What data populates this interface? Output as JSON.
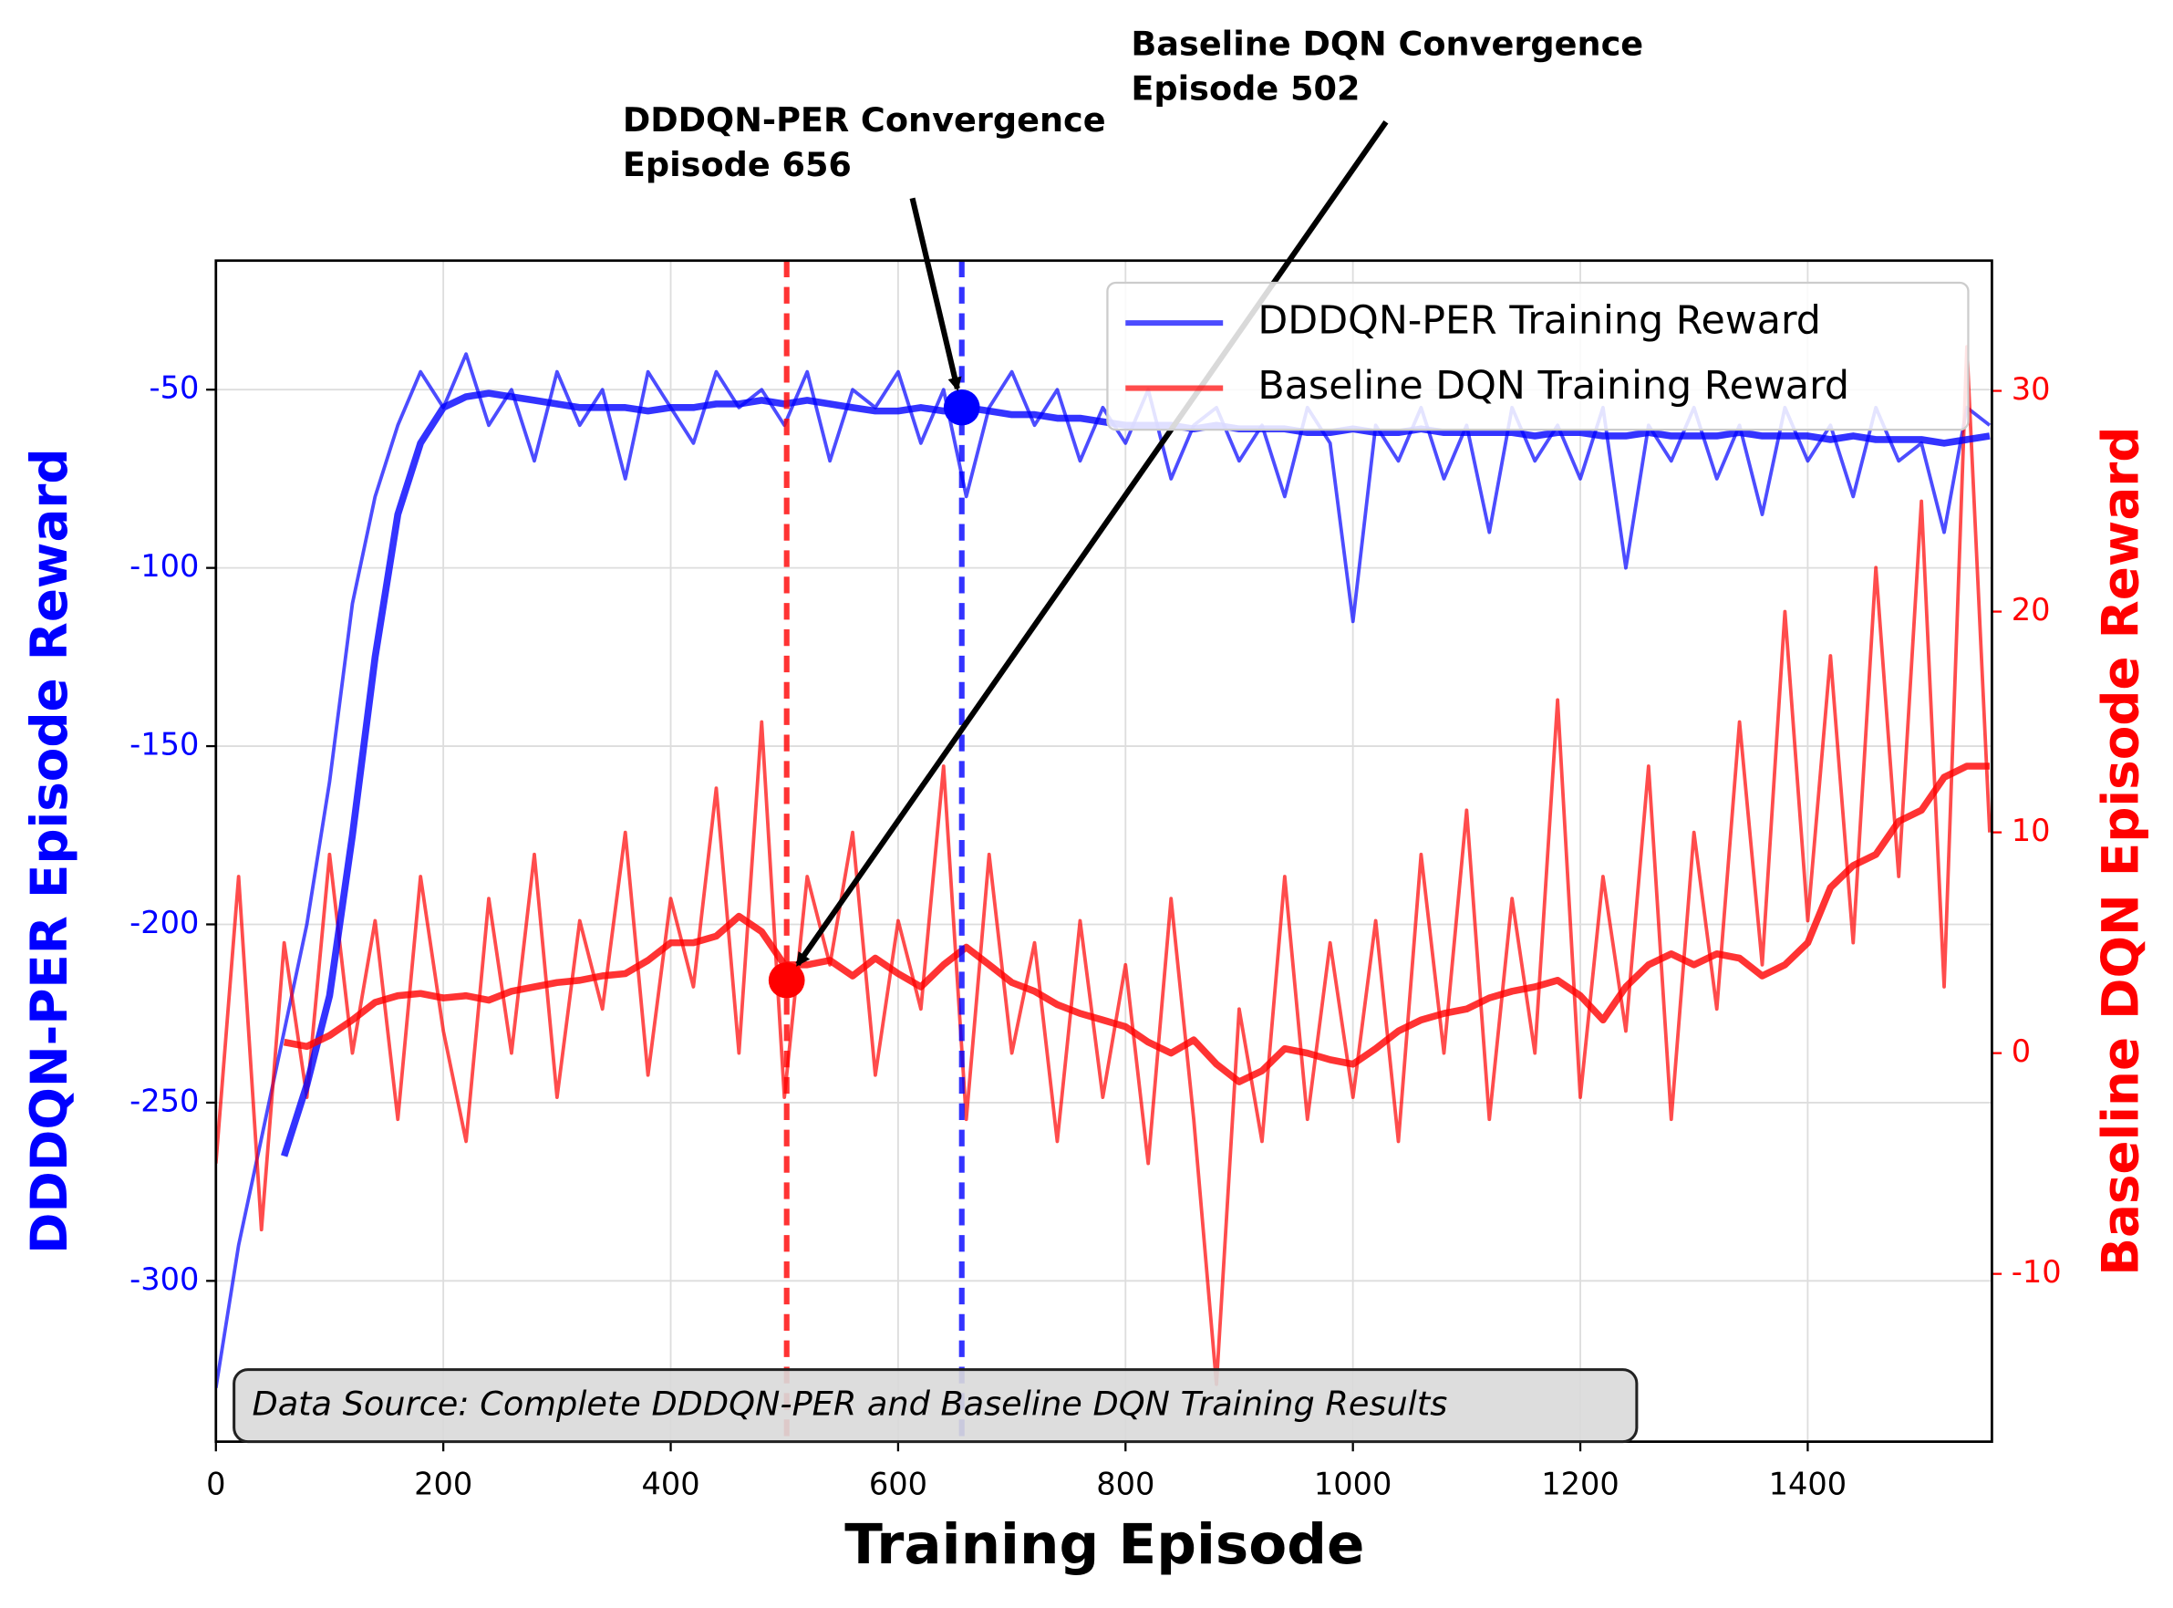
{
  "chart_data": {
    "type": "line",
    "title_x": "Training Episode",
    "ylabel": "DDDQN-PER Episode Reward",
    "y2label": "Baseline DQN Episode Reward",
    "x": [
      0,
      20,
      40,
      60,
      80,
      100,
      120,
      140,
      160,
      180,
      200,
      220,
      240,
      260,
      280,
      300,
      320,
      340,
      360,
      380,
      400,
      420,
      440,
      460,
      480,
      500,
      520,
      540,
      560,
      580,
      600,
      620,
      640,
      660,
      680,
      700,
      720,
      740,
      760,
      780,
      800,
      820,
      840,
      860,
      880,
      900,
      920,
      940,
      960,
      980,
      1000,
      1020,
      1040,
      1060,
      1080,
      1100,
      1120,
      1140,
      1160,
      1180,
      1200,
      1220,
      1240,
      1260,
      1280,
      1300,
      1320,
      1340,
      1360,
      1380,
      1400,
      1420,
      1440,
      1460,
      1480,
      1500,
      1520,
      1540,
      1560
    ],
    "series": [
      {
        "name": "DDDQN-PER Training Reward",
        "color": "#0000ff",
        "axis": "y",
        "opacity": 0.7,
        "width": 2.5,
        "values": [
          -330,
          -290,
          -260,
          -230,
          -200,
          -160,
          -110,
          -80,
          -60,
          -45,
          -55,
          -40,
          -60,
          -50,
          -70,
          -45,
          -60,
          -50,
          -75,
          -45,
          -55,
          -65,
          -45,
          -55,
          -50,
          -60,
          -45,
          -70,
          -50,
          -55,
          -45,
          -65,
          -50,
          -80,
          -55,
          -45,
          -60,
          -50,
          -70,
          -55,
          -65,
          -50,
          -75,
          -60,
          -55,
          -70,
          -60,
          -80,
          -55,
          -65,
          -115,
          -60,
          -70,
          -55,
          -75,
          -60,
          -90,
          -55,
          -70,
          -60,
          -75,
          -55,
          -100,
          -60,
          -70,
          -55,
          -75,
          -60,
          -85,
          -55,
          -70,
          -60,
          -80,
          -55,
          -70,
          -65,
          -90,
          -55,
          -60
        ]
      },
      {
        "name": "Baseline DQN Training Reward",
        "color": "#ff0000",
        "axis": "y2",
        "opacity": 0.7,
        "width": 2.5,
        "values": [
          -5,
          8,
          -8,
          5,
          -2,
          9,
          0,
          6,
          -3,
          8,
          1,
          -4,
          7,
          0,
          9,
          -2,
          6,
          2,
          10,
          -1,
          7,
          3,
          12,
          0,
          15,
          -2,
          8,
          4,
          10,
          -1,
          6,
          2,
          13,
          -3,
          9,
          0,
          5,
          -4,
          6,
          -2,
          4,
          -5,
          7,
          -3,
          -15,
          2,
          -4,
          8,
          -3,
          5,
          -2,
          6,
          -4,
          9,
          0,
          11,
          -3,
          7,
          0,
          16,
          -2,
          8,
          1,
          13,
          -3,
          10,
          2,
          15,
          4,
          20,
          6,
          18,
          5,
          22,
          8,
          25,
          3,
          32,
          10
        ]
      },
      {
        "color": "#0000ff",
        "axis": "y",
        "opacity": 0.8,
        "width": 5,
        "values": [
          null,
          null,
          null,
          -265,
          -245,
          -220,
          -175,
          -125,
          -85,
          -65,
          -55,
          -52,
          -51,
          -52,
          -53,
          -54,
          -55,
          -55,
          -55,
          -56,
          -55,
          -55,
          -54,
          -54,
          -53,
          -54,
          -53,
          -54,
          -55,
          -56,
          -56,
          -55,
          -56,
          -55,
          -56,
          -57,
          -57,
          -58,
          -58,
          -59,
          -60,
          -60,
          -60,
          -61,
          -60,
          -61,
          -61,
          -61,
          -62,
          -62,
          -61,
          -62,
          -62,
          -61,
          -62,
          -62,
          -62,
          -62,
          -63,
          -62,
          -62,
          -63,
          -63,
          -62,
          -63,
          -63,
          -63,
          -62,
          -63,
          -63,
          -63,
          -64,
          -63,
          -64,
          -64,
          -64,
          -65,
          -64,
          -63
        ]
      },
      {
        "color": "#ff0000",
        "axis": "y2",
        "opacity": 0.8,
        "width": 5,
        "values": [
          null,
          null,
          null,
          0.5,
          0.3,
          0.8,
          1.5,
          2.3,
          2.6,
          2.7,
          2.5,
          2.6,
          2.4,
          2.8,
          3,
          3.2,
          3.3,
          3.5,
          3.6,
          4.2,
          5,
          5,
          5.3,
          6.2,
          5.5,
          4,
          4,
          4.2,
          3.5,
          4.3,
          3.6,
          3,
          4,
          4.8,
          4,
          3.2,
          2.8,
          2.2,
          1.8,
          1.5,
          1.2,
          0.5,
          0,
          0.6,
          -0.5,
          -1.3,
          -0.8,
          0.2,
          0,
          -0.3,
          -0.5,
          0.2,
          1,
          1.5,
          1.8,
          2,
          2.5,
          2.8,
          3,
          3.3,
          2.6,
          1.5,
          3,
          4,
          4.5,
          4,
          4.5,
          4.3,
          3.5,
          4,
          5,
          7.5,
          8.5,
          9,
          10.5,
          11,
          12.5,
          13,
          13
        ]
      }
    ],
    "xlim": [
      0,
      1562
    ],
    "xticks": [
      0,
      200,
      400,
      600,
      800,
      1000,
      1200,
      1400
    ],
    "ylim": [
      -345.1,
      -13.8
    ],
    "yticks": [
      -50,
      -100,
      -150,
      -200,
      -250,
      -300
    ],
    "y2lim": [
      -17.6,
      35.9
    ],
    "y2ticks": [
      -10,
      0,
      10,
      20,
      30
    ],
    "grid": true,
    "legend": "upper right",
    "vlines": [
      {
        "x": 502,
        "color": "#ff0000"
      },
      {
        "x": 656,
        "color": "#0000ff"
      }
    ],
    "annotations": [
      {
        "lines": [
          "DDDQN-PER Convergence",
          "Episode 656"
        ],
        "x": 656,
        "y": -55,
        "axis": "y",
        "color": "#0000ff"
      },
      {
        "lines": [
          "Baseline DQN Convergence",
          "Episode 502"
        ],
        "x": 502,
        "y": 3.3,
        "axis": "y2",
        "color": "#ff0000"
      }
    ],
    "footnote": "Data Source: Complete DDDQN-PER and Baseline DQN Training Results"
  }
}
